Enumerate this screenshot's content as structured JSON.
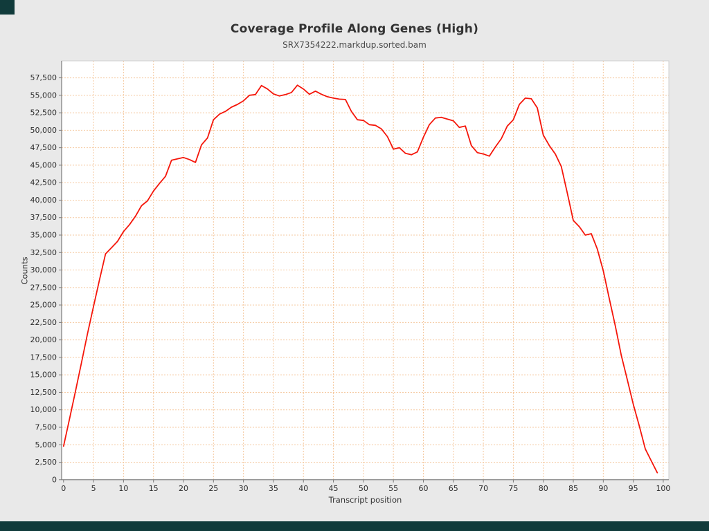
{
  "window": {
    "chrome_color": "#113b3b"
  },
  "chart_data": {
    "type": "line",
    "title": "Coverage Profile Along Genes (High)",
    "subtitle": "SRX7354222.markdup.sorted.bam",
    "xlabel": "Transcript position",
    "ylabel": "Counts",
    "xlim": [
      -0.32,
      100.93
    ],
    "ylim": [
      0,
      59930
    ],
    "grid": true,
    "legend": "none",
    "grid_color": "#f5c9a0",
    "x_ticks": [
      0,
      5,
      10,
      15,
      20,
      25,
      30,
      35,
      40,
      45,
      50,
      55,
      60,
      65,
      70,
      75,
      80,
      85,
      90,
      95,
      100
    ],
    "y_ticks": [
      0,
      2500,
      5000,
      7500,
      10000,
      12500,
      15000,
      17500,
      20000,
      22500,
      25000,
      27500,
      30000,
      32500,
      35000,
      37500,
      40000,
      42500,
      45000,
      47500,
      50000,
      52500,
      55000,
      57500
    ],
    "series": [
      {
        "name": "SRX7354222.markdup.sorted.bam",
        "color": "#f5160a",
        "x": [
          0,
          1,
          2,
          3,
          4,
          5,
          6,
          7,
          8,
          9,
          10,
          11,
          12,
          13,
          14,
          15,
          16,
          17,
          18,
          19,
          20,
          21,
          22,
          23,
          24,
          25,
          26,
          27,
          28,
          29,
          30,
          31,
          32,
          33,
          34,
          35,
          36,
          37,
          38,
          39,
          40,
          41,
          42,
          43,
          44,
          45,
          46,
          47,
          48,
          49,
          50,
          51,
          52,
          53,
          54,
          55,
          56,
          57,
          58,
          59,
          60,
          61,
          62,
          63,
          64,
          65,
          66,
          67,
          68,
          69,
          70,
          71,
          72,
          73,
          74,
          75,
          76,
          77,
          78,
          79,
          80,
          81,
          82,
          83,
          84,
          85,
          86,
          87,
          88,
          89,
          90,
          91,
          92,
          93,
          94,
          95,
          96,
          97,
          98,
          99
        ],
        "values": [
          4800,
          8700,
          12700,
          16800,
          20900,
          24800,
          28600,
          32300,
          33200,
          34100,
          35500,
          36500,
          37700,
          39200,
          39900,
          41300,
          42400,
          43400,
          45700,
          45900,
          46100,
          45800,
          45400,
          47900,
          48900,
          51500,
          52300,
          52700,
          53300,
          53700,
          54200,
          55000,
          55100,
          56400,
          55900,
          55200,
          54900,
          55100,
          55400,
          56450,
          55900,
          55150,
          55600,
          55150,
          54800,
          54600,
          54450,
          54400,
          52700,
          51500,
          51400,
          50800,
          50700,
          50200,
          49100,
          47300,
          47500,
          46700,
          46500,
          46900,
          49000,
          50800,
          51750,
          51850,
          51600,
          51350,
          50400,
          50600,
          47800,
          46800,
          46600,
          46300,
          47600,
          48800,
          50600,
          51500,
          53700,
          54600,
          54500,
          53200,
          49300,
          47800,
          46600,
          44800,
          41000,
          37100,
          36200,
          35000,
          35200,
          33000,
          29900,
          25900,
          22000,
          17800,
          14300,
          10800,
          7700,
          4400,
          2700,
          1000
        ]
      }
    ]
  }
}
